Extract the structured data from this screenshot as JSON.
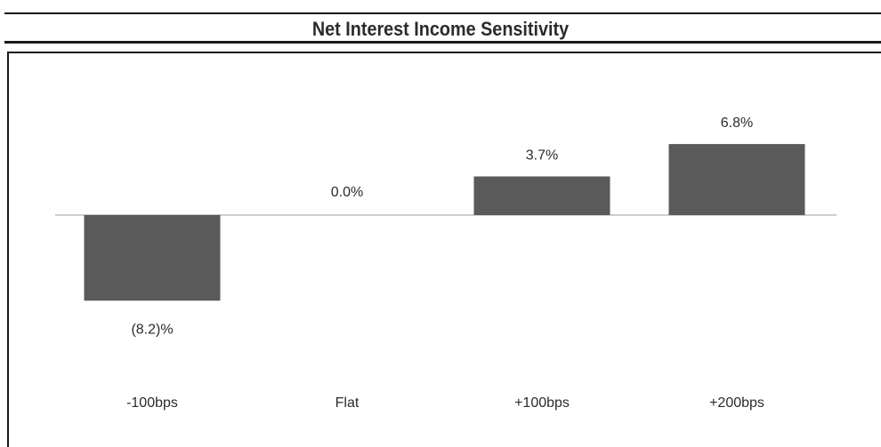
{
  "chart_data": {
    "type": "bar",
    "title": "Net Interest Income Sensitivity",
    "categories": [
      "-100bps",
      "Flat",
      "+100bps",
      "+200bps"
    ],
    "values": [
      -8.2,
      0.0,
      3.7,
      6.8
    ],
    "value_labels": [
      "(8.2)%",
      "0.0%",
      "3.7%",
      "6.8%"
    ],
    "bar_color": "#5a5a5a",
    "baseline_color": "#bdbdbd",
    "xlabel": "",
    "ylabel": "",
    "grid": false
  }
}
